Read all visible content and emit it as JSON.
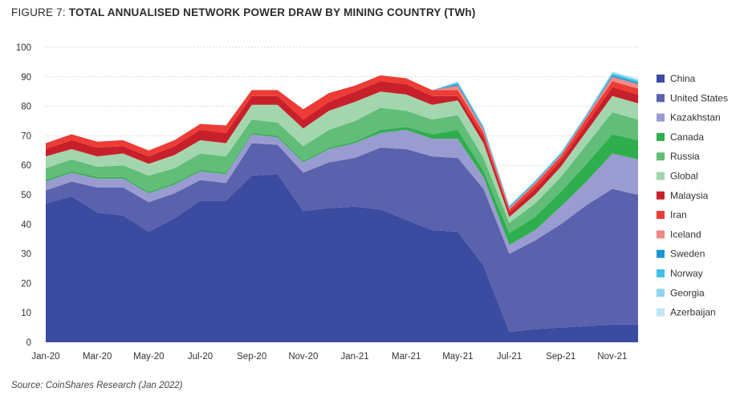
{
  "figure": {
    "lead": "FIGURE 7:",
    "title": "TOTAL ANNUALISED NETWORK POWER DRAW BY MINING COUNTRY (TWh)",
    "source": "Source: CoinShares Research (Jan 2022)"
  },
  "chart_data": {
    "type": "area",
    "stacked": true,
    "title": "TOTAL ANNUALISED NETWORK POWER DRAW BY MINING COUNTRY (TWh)",
    "ylim": [
      0,
      100
    ],
    "yticks": [
      0,
      10,
      20,
      30,
      40,
      50,
      60,
      70,
      80,
      90,
      100
    ],
    "x": [
      "Jan-20",
      "Feb-20",
      "Mar-20",
      "Apr-20",
      "May-20",
      "Jun-20",
      "Jul-20",
      "Aug-20",
      "Sep-20",
      "Oct-20",
      "Nov-20",
      "Dec-20",
      "Jan-21",
      "Feb-21",
      "Mar-21",
      "Apr-21",
      "May-21",
      "Jun-21",
      "Jul-21",
      "Aug-21",
      "Sep-21",
      "Oct-21",
      "Nov-21",
      "Dec-21"
    ],
    "xticks": [
      "Jan-20",
      "Mar-20",
      "May-20",
      "Jul-20",
      "Sep-20",
      "Nov-20",
      "Jan-21",
      "Mar-21",
      "May-21",
      "Jul-21",
      "Sep-21",
      "Nov-21"
    ],
    "grid": "horizontal-dashed",
    "legend": "right",
    "series": [
      {
        "name": "China",
        "color": "#3a4ba0",
        "values": [
          47,
          49.5,
          44,
          43,
          37.5,
          42,
          48,
          48,
          56.5,
          57,
          44.5,
          45.5,
          46,
          45,
          41.5,
          38,
          37.5,
          26,
          3.5,
          4.5,
          5,
          5.5,
          6,
          6
        ]
      },
      {
        "name": "United States",
        "color": "#5a62ad",
        "values": [
          4.5,
          5,
          8.5,
          9.5,
          10,
          8.5,
          7,
          6,
          11,
          10,
          13,
          15.5,
          16.5,
          21,
          24,
          25,
          25,
          26,
          26.5,
          30,
          35,
          41,
          46,
          44
        ]
      },
      {
        "name": "Kazakhstan",
        "color": "#9a9bd0",
        "values": [
          3,
          3,
          3,
          3,
          3,
          3,
          3,
          3,
          3,
          2.5,
          3.5,
          4.5,
          5,
          5,
          6.5,
          6,
          6.5,
          4,
          3,
          3.5,
          6,
          8,
          12,
          12
        ]
      },
      {
        "name": "Canada",
        "color": "#2fae4e",
        "values": [
          0.5,
          0.5,
          0.5,
          0.5,
          0.5,
          0.5,
          0.5,
          0.5,
          0.5,
          0.5,
          0.5,
          0.5,
          0.5,
          1,
          1,
          1.5,
          3,
          2,
          4,
          4.5,
          5,
          6,
          6.5,
          6.5
        ]
      },
      {
        "name": "Russia",
        "color": "#61bd78",
        "values": [
          4,
          4,
          3.5,
          4,
          5.5,
          5,
          5.5,
          5.5,
          4.5,
          4.5,
          5,
          6,
          7,
          7.5,
          5.5,
          5,
          5,
          4.5,
          3.5,
          4.5,
          5,
          6.5,
          7.5,
          7
        ]
      },
      {
        "name": "Global",
        "color": "#a3d6ae",
        "values": [
          4,
          3.5,
          3.5,
          4,
          4,
          4.5,
          4.5,
          4.5,
          5,
          6,
          6,
          6.5,
          6.5,
          5.5,
          5.5,
          5,
          5,
          5,
          2,
          3,
          3.5,
          4.5,
          5.5,
          5.5
        ]
      },
      {
        "name": "Malaysia",
        "color": "#c8202a",
        "values": [
          2.5,
          3,
          3,
          2.5,
          2.5,
          3,
          3.5,
          3.5,
          3,
          3,
          3,
          3,
          3.5,
          3.5,
          3.5,
          3,
          1.5,
          2,
          1.5,
          2,
          2,
          2.5,
          3,
          3
        ]
      },
      {
        "name": "Iran",
        "color": "#ec3c35",
        "values": [
          2,
          2,
          2,
          2,
          2,
          2,
          2,
          2.5,
          2,
          2,
          3.5,
          3,
          2,
          2,
          2,
          2,
          2,
          1.5,
          1,
          1.5,
          1.5,
          2,
          2,
          2
        ]
      },
      {
        "name": "Iceland",
        "color": "#f08a86",
        "values": [
          0,
          0,
          0,
          0,
          0,
          0,
          0,
          0,
          0,
          0,
          0,
          0,
          0,
          0,
          0,
          0,
          1.5,
          1,
          0.5,
          0.5,
          0.5,
          0.5,
          1.5,
          1.5
        ]
      },
      {
        "name": "Sweden",
        "color": "#1d95cf",
        "values": [
          0,
          0,
          0,
          0,
          0,
          0,
          0,
          0,
          0,
          0,
          0,
          0,
          0,
          0,
          0,
          0,
          0.5,
          0.5,
          0.3,
          0.3,
          0.3,
          0.3,
          0.5,
          0.5
        ]
      },
      {
        "name": "Norway",
        "color": "#3fc1e8",
        "values": [
          0,
          0,
          0,
          0,
          0,
          0,
          0,
          0,
          0,
          0,
          0,
          0,
          0,
          0,
          0,
          0,
          0.5,
          0.4,
          0.3,
          0.3,
          0.3,
          0.3,
          0.6,
          0.6
        ]
      },
      {
        "name": "Georgia",
        "color": "#8ed6ee",
        "values": [
          0,
          0,
          0,
          0,
          0,
          0,
          0,
          0,
          0,
          0,
          0,
          0,
          0,
          0,
          0,
          0,
          0.3,
          0.3,
          0.2,
          0.2,
          0.2,
          0.3,
          0.4,
          0.4
        ]
      },
      {
        "name": "Azerbaijan",
        "color": "#bfe6f5",
        "values": [
          0,
          0,
          0,
          0,
          0,
          0,
          0,
          0,
          0,
          0,
          0,
          0,
          0,
          0,
          0,
          0,
          0.2,
          0.2,
          0.1,
          0.1,
          0.1,
          0.2,
          0.3,
          0.3
        ]
      }
    ]
  }
}
